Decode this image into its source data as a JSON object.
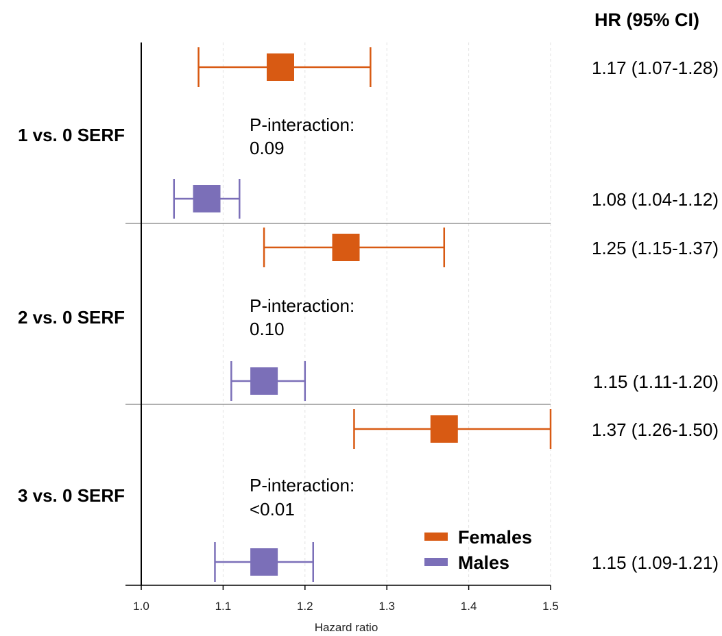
{
  "colors": {
    "females": "#d85a13",
    "males": "#7b6fb8",
    "axis": "#000000",
    "separator": "#808080",
    "grid": "#e2e2e2",
    "text": "#000000"
  },
  "hr_header": "HR (95% CI)",
  "chart_data": {
    "type": "forest",
    "title": "",
    "xlabel": "Hazard ratio",
    "xlim": [
      1.0,
      1.5
    ],
    "xticks": [
      "1.0",
      "1.1",
      "1.2",
      "1.3",
      "1.4",
      "1.5"
    ],
    "grid": "vertical dashed at ticks",
    "legend": {
      "placement": "bottom-right",
      "entries": [
        {
          "name": "Females",
          "color_key": "females"
        },
        {
          "name": "Males",
          "color_key": "males"
        }
      ]
    },
    "groups": [
      {
        "label": "1 vs. 0 SERF",
        "p_label": "P-interaction:",
        "p_value": "0.09",
        "rows": [
          {
            "series": "Females",
            "hr": 1.17,
            "lo": 1.07,
            "hi": 1.28,
            "text": "1.17 (1.07-1.28)"
          },
          {
            "series": "Males",
            "hr": 1.08,
            "lo": 1.04,
            "hi": 1.12,
            "text": "1.08 (1.04-1.12)"
          }
        ]
      },
      {
        "label": "2 vs. 0 SERF",
        "p_label": "P-interaction:",
        "p_value": "0.10",
        "rows": [
          {
            "series": "Females",
            "hr": 1.25,
            "lo": 1.15,
            "hi": 1.37,
            "text": "1.25 (1.15-1.37)"
          },
          {
            "series": "Males",
            "hr": 1.15,
            "lo": 1.11,
            "hi": 1.2,
            "text": "1.15 (1.11-1.20)"
          }
        ]
      },
      {
        "label": "3 vs. 0 SERF",
        "p_label": "P-interaction:",
        "p_value": "<0.01",
        "rows": [
          {
            "series": "Females",
            "hr": 1.37,
            "lo": 1.26,
            "hi": 1.5,
            "text": "1.37 (1.26-1.50)"
          },
          {
            "series": "Males",
            "hr": 1.15,
            "lo": 1.09,
            "hi": 1.21,
            "text": "1.15 (1.09-1.21)"
          }
        ]
      }
    ]
  }
}
